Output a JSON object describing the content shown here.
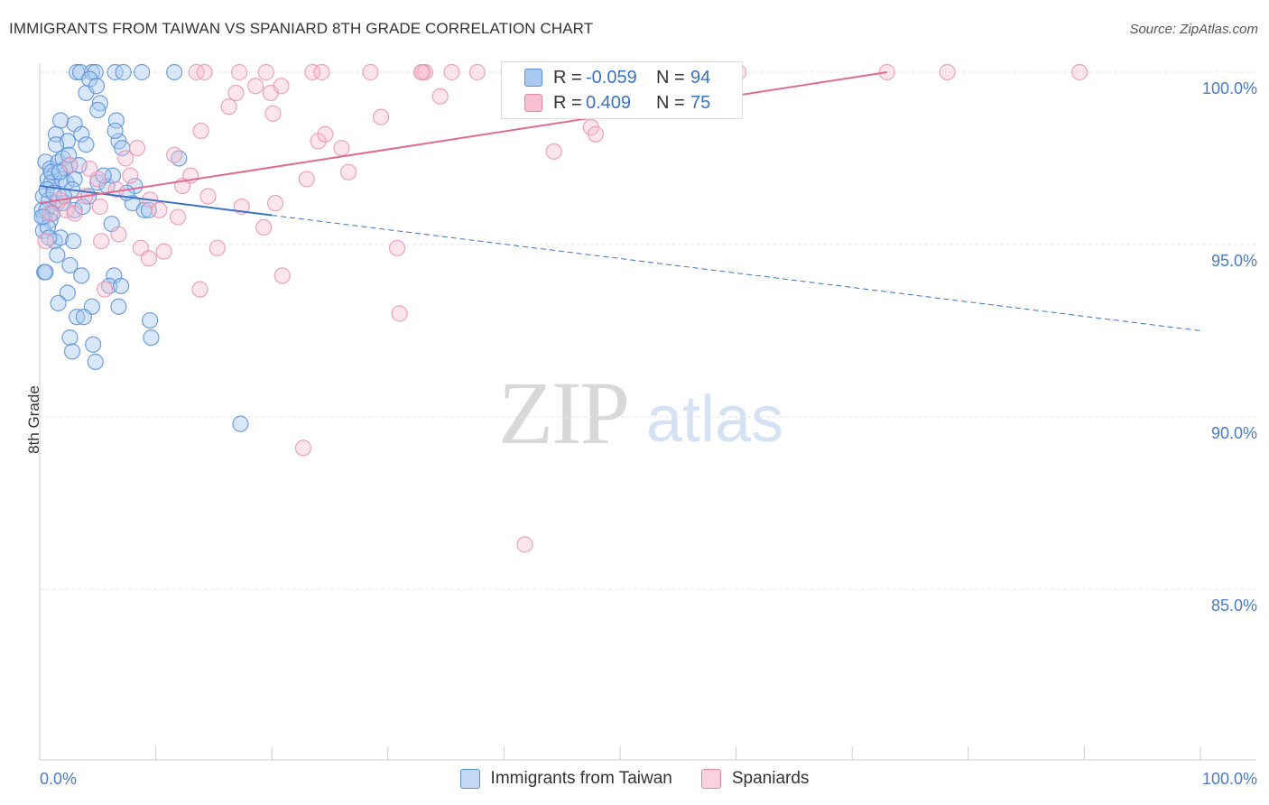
{
  "title": "IMMIGRANTS FROM TAIWAN VS SPANIARD 8TH GRADE CORRELATION CHART",
  "source": "Source: ZipAtlas.com",
  "watermark": {
    "zip": "ZIP",
    "atlas": "atlas"
  },
  "legend": {
    "rows": [
      {
        "r_label": "R =",
        "r_value": "-0.059",
        "n_label": "N =",
        "n_value": "94",
        "color": "#a9c9f2",
        "border": "#5b8fd6"
      },
      {
        "r_label": "R =",
        "r_value": "0.409",
        "n_label": "N =",
        "n_value": "75",
        "color": "#f7bfd0",
        "border": "#e08aa6"
      }
    ]
  },
  "bottom_legend": [
    {
      "label": "Immigrants from Taiwan",
      "color": "#a9c9f2",
      "border": "#5b8fd6"
    },
    {
      "label": "Spaniards",
      "color": "#f7bfd0",
      "border": "#e08aa6"
    }
  ],
  "chart_data": {
    "type": "scatter",
    "title": "IMMIGRANTS FROM TAIWAN VS SPANIARD 8TH GRADE CORRELATION CHART",
    "xlabel": "",
    "ylabel": "8th Grade",
    "xlim": [
      0,
      100
    ],
    "ylim": [
      80.7,
      100.5
    ],
    "x_tick_labels": [
      "0.0%",
      "100.0%"
    ],
    "y_ticks": [
      100,
      95,
      90,
      85
    ],
    "y_tick_labels": [
      "100.0%",
      "95.0%",
      "90.0%",
      "85.0%"
    ],
    "grid": true,
    "colors": {
      "blue": "#5b8fd6",
      "blue_line": "#3b72c6",
      "pink": "#e895b1",
      "pink_line": "#e06a92",
      "tick_label": "#4a7cc9"
    },
    "series": [
      {
        "name": "Immigrants from Taiwan",
        "color": "#5b8fd6",
        "trend": {
          "x0": 0,
          "y0": 96.7,
          "x1": 20,
          "y1": 95.85,
          "dash_x1": 100,
          "dash_y1": 92.5
        },
        "points": [
          [
            3.2,
            100
          ],
          [
            3.5,
            100
          ],
          [
            4.5,
            100
          ],
          [
            4.8,
            100
          ],
          [
            6.5,
            100
          ],
          [
            7.2,
            100
          ],
          [
            8.8,
            100
          ],
          [
            11.6,
            100
          ],
          [
            4.0,
            99.4
          ],
          [
            4.3,
            99.8
          ],
          [
            5.2,
            99.1
          ],
          [
            5.0,
            98.9
          ],
          [
            1.4,
            98.2
          ],
          [
            1.8,
            98.6
          ],
          [
            2.4,
            98.0
          ],
          [
            3.0,
            98.5
          ],
          [
            3.6,
            98.2
          ],
          [
            4.0,
            97.9
          ],
          [
            6.6,
            98.6
          ],
          [
            6.8,
            98.0
          ],
          [
            6.5,
            98.3
          ],
          [
            7.1,
            97.8
          ],
          [
            12.0,
            97.5
          ],
          [
            0.5,
            97.4
          ],
          [
            0.9,
            97.2
          ],
          [
            1.2,
            97.0
          ],
          [
            1.6,
            97.4
          ],
          [
            2.0,
            97.5
          ],
          [
            2.2,
            97.2
          ],
          [
            2.6,
            97.3
          ],
          [
            0.7,
            96.9
          ],
          [
            1.0,
            96.8
          ],
          [
            1.9,
            96.9
          ],
          [
            2.3,
            96.8
          ],
          [
            3.0,
            96.9
          ],
          [
            5.0,
            96.8
          ],
          [
            5.8,
            96.7
          ],
          [
            8.2,
            96.7
          ],
          [
            0.3,
            96.4
          ],
          [
            0.8,
            96.3
          ],
          [
            1.5,
            96.2
          ],
          [
            2.0,
            96.2
          ],
          [
            8.0,
            96.2
          ],
          [
            0.2,
            96.0
          ],
          [
            0.6,
            96.0
          ],
          [
            1.1,
            95.9
          ],
          [
            3.0,
            96.0
          ],
          [
            9.0,
            96.0
          ],
          [
            9.4,
            96.0
          ],
          [
            0.4,
            95.8
          ],
          [
            0.9,
            95.7
          ],
          [
            6.2,
            95.6
          ],
          [
            0.3,
            95.4
          ],
          [
            0.7,
            95.5
          ],
          [
            1.3,
            95.1
          ],
          [
            1.8,
            95.2
          ],
          [
            1.5,
            94.7
          ],
          [
            2.6,
            94.4
          ],
          [
            0.4,
            94.2
          ],
          [
            3.6,
            94.1
          ],
          [
            6.4,
            94.1
          ],
          [
            6.0,
            93.8
          ],
          [
            7.0,
            93.8
          ],
          [
            2.4,
            93.6
          ],
          [
            1.6,
            93.3
          ],
          [
            4.5,
            93.2
          ],
          [
            6.8,
            93.2
          ],
          [
            3.2,
            92.9
          ],
          [
            3.8,
            92.9
          ],
          [
            9.5,
            92.8
          ],
          [
            2.6,
            92.3
          ],
          [
            4.6,
            92.1
          ],
          [
            9.6,
            92.3
          ],
          [
            2.8,
            91.9
          ],
          [
            4.8,
            91.6
          ],
          [
            17.3,
            89.8
          ],
          [
            0.6,
            96.6
          ],
          [
            1.0,
            97.1
          ],
          [
            2.8,
            96.6
          ],
          [
            4.2,
            96.4
          ],
          [
            7.5,
            96.5
          ],
          [
            0.5,
            94.2
          ],
          [
            3.4,
            97.3
          ],
          [
            4.9,
            99.6
          ],
          [
            6.3,
            97.0
          ],
          [
            1.7,
            97.1
          ],
          [
            2.9,
            95.1
          ],
          [
            1.2,
            96.5
          ],
          [
            0.8,
            95.2
          ],
          [
            2.1,
            96.4
          ],
          [
            3.7,
            96.1
          ],
          [
            5.5,
            97.0
          ],
          [
            0.2,
            95.8
          ],
          [
            1.4,
            97.9
          ],
          [
            2.5,
            97.6
          ]
        ]
      },
      {
        "name": "Spaniards",
        "color": "#e895b1",
        "trend": {
          "x0": 0,
          "y0": 96.2,
          "x1": 73,
          "y1": 100
        },
        "points": [
          [
            13.5,
            100
          ],
          [
            14.2,
            100
          ],
          [
            17.2,
            100
          ],
          [
            19.5,
            100
          ],
          [
            23.5,
            100
          ],
          [
            24.3,
            100
          ],
          [
            28.5,
            100
          ],
          [
            33.0,
            100
          ],
          [
            33.2,
            100
          ],
          [
            35.5,
            100
          ],
          [
            37.7,
            100
          ],
          [
            40.4,
            100
          ],
          [
            48.2,
            100
          ],
          [
            57.0,
            100
          ],
          [
            58.5,
            100
          ],
          [
            60.2,
            100
          ],
          [
            73.0,
            100
          ],
          [
            78.2,
            100
          ],
          [
            89.6,
            100
          ],
          [
            32.9,
            100
          ],
          [
            44.0,
            100
          ],
          [
            18.6,
            99.6
          ],
          [
            19.9,
            99.4
          ],
          [
            16.9,
            99.4
          ],
          [
            20.8,
            99.6
          ],
          [
            24.0,
            98.0
          ],
          [
            16.3,
            99.0
          ],
          [
            20.1,
            98.8
          ],
          [
            24.6,
            98.2
          ],
          [
            13.9,
            98.3
          ],
          [
            34.5,
            99.3
          ],
          [
            29.4,
            98.7
          ],
          [
            47.5,
            98.4
          ],
          [
            47.9,
            98.2
          ],
          [
            8.4,
            97.8
          ],
          [
            11.6,
            97.6
          ],
          [
            26.0,
            97.8
          ],
          [
            44.3,
            97.7
          ],
          [
            7.4,
            97.5
          ],
          [
            2.6,
            97.3
          ],
          [
            4.3,
            97.2
          ],
          [
            7.8,
            97.0
          ],
          [
            13.0,
            97.0
          ],
          [
            23.0,
            96.9
          ],
          [
            26.6,
            97.1
          ],
          [
            12.3,
            96.7
          ],
          [
            6.6,
            96.6
          ],
          [
            9.5,
            96.3
          ],
          [
            14.5,
            96.4
          ],
          [
            17.4,
            96.1
          ],
          [
            20.3,
            96.2
          ],
          [
            1.7,
            96.3
          ],
          [
            3.9,
            96.4
          ],
          [
            2.3,
            96.0
          ],
          [
            5.2,
            96.1
          ],
          [
            10.3,
            96.0
          ],
          [
            0.9,
            95.9
          ],
          [
            0.5,
            95.1
          ],
          [
            5.3,
            95.1
          ],
          [
            6.8,
            95.3
          ],
          [
            8.7,
            94.9
          ],
          [
            10.7,
            94.8
          ],
          [
            15.3,
            94.9
          ],
          [
            19.3,
            95.5
          ],
          [
            30.8,
            94.9
          ],
          [
            9.4,
            94.6
          ],
          [
            20.9,
            94.1
          ],
          [
            5.6,
            93.7
          ],
          [
            13.8,
            93.7
          ],
          [
            31.0,
            93.0
          ],
          [
            22.7,
            89.1
          ],
          [
            41.8,
            86.3
          ],
          [
            5.0,
            96.9
          ],
          [
            3.0,
            95.9
          ],
          [
            11.9,
            95.8
          ]
        ]
      }
    ]
  }
}
